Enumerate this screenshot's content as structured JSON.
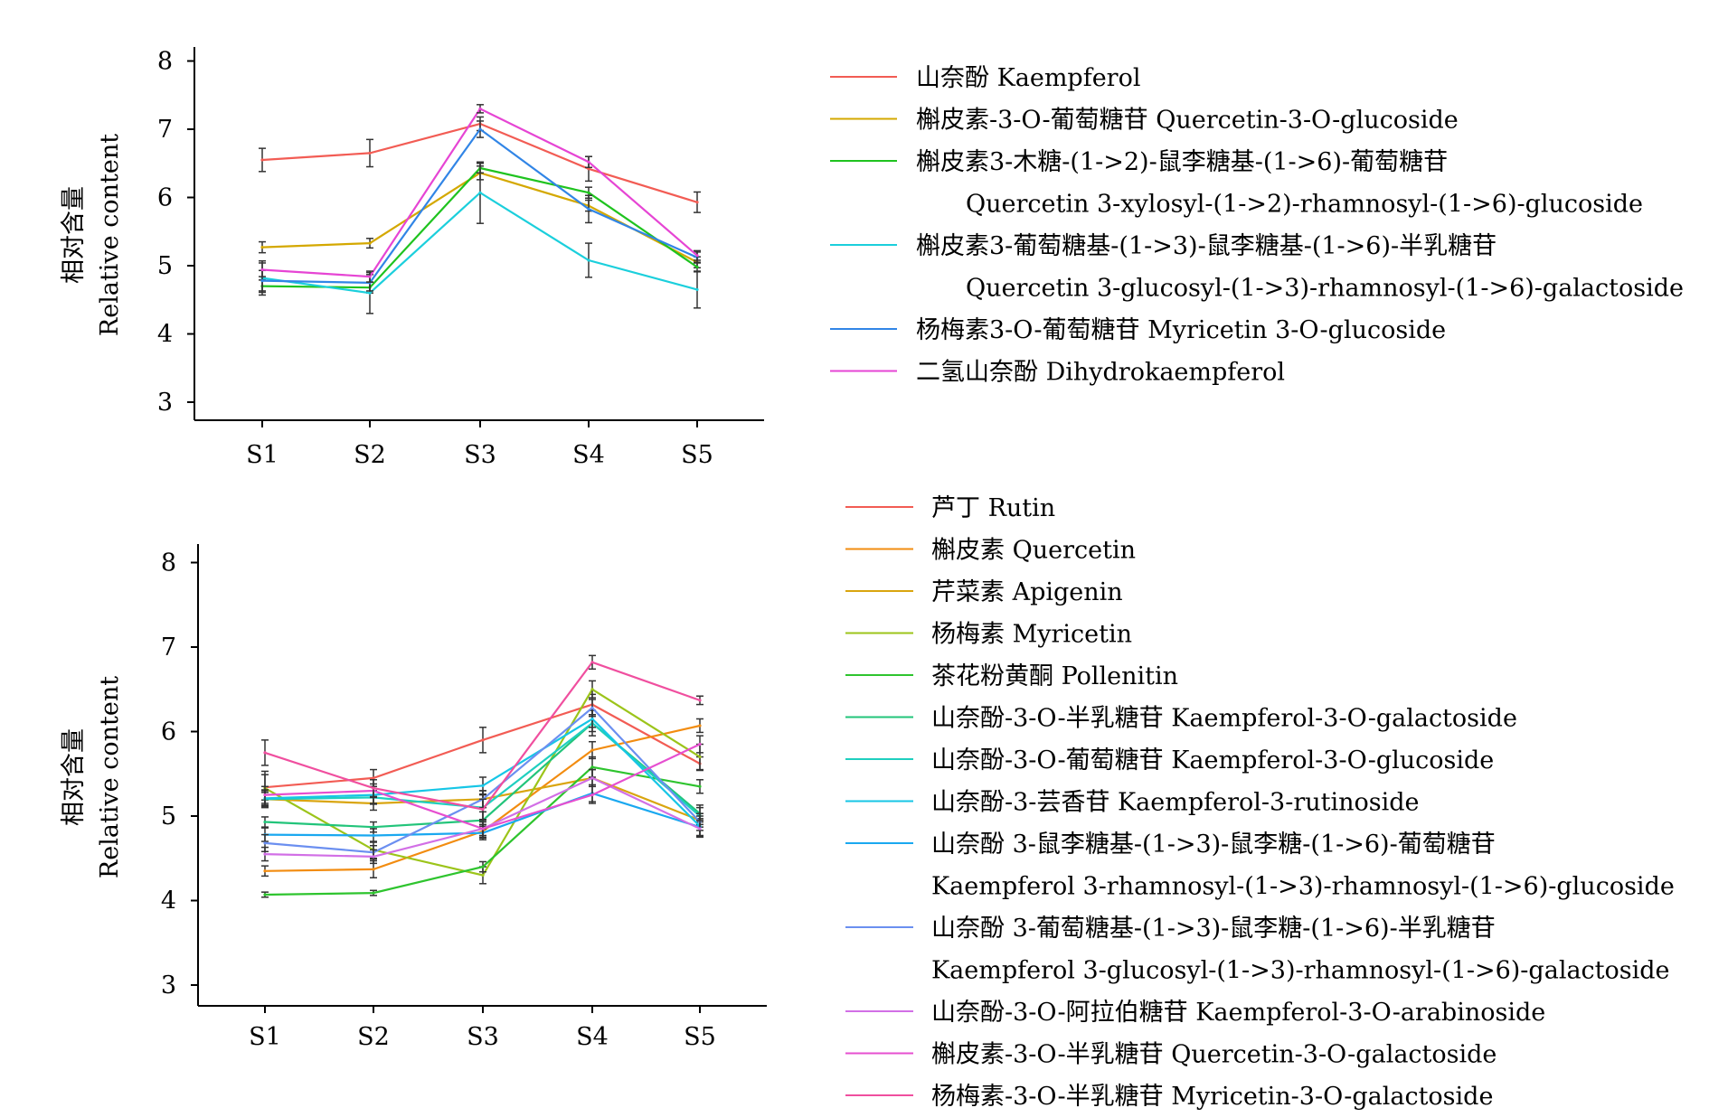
{
  "chart_data": [
    {
      "type": "line",
      "categories": [
        "S1",
        "S2",
        "S3",
        "S4",
        "S5"
      ],
      "ylim": [
        3,
        8
      ],
      "yticks": [
        3,
        4,
        5,
        6,
        7,
        8
      ],
      "ylabel_cn": "相对含量",
      "ylabel_en": "Relative content",
      "grid": false,
      "legend_position": "right",
      "series": [
        {
          "name_lines": [
            "山奈酚 Kaempferol"
          ],
          "color": "#f25c54",
          "values": [
            6.55,
            6.65,
            7.08,
            6.42,
            5.93
          ],
          "errors": [
            0.17,
            0.2,
            0.1,
            0.18,
            0.15
          ]
        },
        {
          "name_lines": [
            "槲皮素-3-O-葡萄糖苷 Quercetin-3-O-glucoside"
          ],
          "color": "#d4a800",
          "values": [
            5.27,
            5.33,
            6.36,
            5.88,
            5.05
          ],
          "errors": [
            0.08,
            0.07,
            0.1,
            0.08,
            0.08
          ]
        },
        {
          "name_lines": [
            "槲皮素3-木糖-(1->2)-鼠李糖基-(1->6)-葡萄糖苷",
            "Quercetin 3-xylosyl-(1->2)-rhamnosyl-(1->6)-glucoside"
          ],
          "color": "#1fc31f",
          "values": [
            4.7,
            4.68,
            6.43,
            6.07,
            4.98
          ],
          "errors": [
            0.09,
            0.08,
            0.07,
            0.08,
            0.07
          ]
        },
        {
          "name_lines": [
            "槲皮素3-葡萄糖基-(1->3)-鼠李糖基-(1->6)-半乳糖苷",
            "Quercetin 3-glucosyl-(1->3)-rhamnosyl-(1->6)-galactoside"
          ],
          "color": "#1bcfdc",
          "values": [
            4.82,
            4.6,
            6.07,
            5.08,
            4.65
          ],
          "errors": [
            0.25,
            0.3,
            0.45,
            0.25,
            0.27
          ]
        },
        {
          "name_lines": [
            "杨梅素3-O-葡萄糖苷 Myricetin 3-O-glucoside"
          ],
          "color": "#3185e6",
          "values": [
            4.78,
            4.75,
            7.0,
            5.83,
            5.12
          ],
          "errors": [
            0.15,
            0.12,
            0.12,
            0.2,
            0.08
          ]
        },
        {
          "name_lines": [
            "二氢山奈酚  Dihydrokaempferol"
          ],
          "color": "#e645d4",
          "values": [
            4.94,
            4.84,
            7.3,
            6.52,
            5.15
          ],
          "errors": [
            0.1,
            0.08,
            0.06,
            0.08,
            0.07
          ]
        }
      ]
    },
    {
      "type": "line",
      "categories": [
        "S1",
        "S2",
        "S3",
        "S4",
        "S5"
      ],
      "ylim": [
        3,
        8
      ],
      "yticks": [
        3,
        4,
        5,
        6,
        7,
        8
      ],
      "ylabel_cn": "相对含量",
      "ylabel_en": "Relative content",
      "grid": false,
      "legend_position": "right",
      "series": [
        {
          "name_lines": [
            "芦丁 Rutin"
          ],
          "color": "#f25c54",
          "values": [
            5.34,
            5.45,
            5.9,
            6.32,
            5.62
          ],
          "errors": [
            0.15,
            0.1,
            0.15,
            0.12,
            0.08
          ]
        },
        {
          "name_lines": [
            "槲皮素 Quercetin"
          ],
          "color": "#f28c10",
          "values": [
            4.35,
            4.37,
            4.82,
            5.78,
            6.07
          ],
          "errors": [
            0.06,
            0.1,
            0.08,
            0.1,
            0.08
          ]
        },
        {
          "name_lines": [
            "芹菜素 Apigenin"
          ],
          "color": "#d9a50f",
          "values": [
            5.2,
            5.15,
            5.2,
            5.45,
            4.95
          ],
          "errors": [
            0.1,
            0.08,
            0.1,
            0.1,
            0.08
          ]
        },
        {
          "name_lines": [
            "杨梅素 Myricetin"
          ],
          "color": "#9cc41a",
          "values": [
            5.33,
            4.6,
            4.3,
            6.5,
            5.7
          ],
          "errors": [
            0.2,
            0.1,
            0.1,
            0.1,
            0.15
          ]
        },
        {
          "name_lines": [
            "茶花粉黄酮 Pollenitin"
          ],
          "color": "#2ec42e",
          "values": [
            4.07,
            4.09,
            4.4,
            5.58,
            5.35
          ],
          "errors": [
            0.03,
            0.03,
            0.06,
            0.12,
            0.08
          ]
        },
        {
          "name_lines": [
            "山奈酚-3-O-半乳糖苷 Kaempferol-3-O-galactoside"
          ],
          "color": "#22c47a",
          "values": [
            4.93,
            4.87,
            4.95,
            6.1,
            5.03
          ],
          "errors": [
            0.06,
            0.06,
            0.1,
            0.1,
            0.1
          ]
        },
        {
          "name_lines": [
            "山奈酚-3-O-葡萄糖苷 Kaempferol-3-O-glucoside"
          ],
          "color": "#1fcfbf",
          "values": [
            5.2,
            5.22,
            5.1,
            6.1,
            5.0
          ],
          "errors": [
            0.08,
            0.08,
            0.15,
            0.15,
            0.1
          ]
        },
        {
          "name_lines": [
            "山奈酚-3-芸香苷 Kaempferol-3-rutinoside"
          ],
          "color": "#16c6e6",
          "values": [
            5.21,
            5.25,
            5.36,
            6.15,
            4.88
          ],
          "errors": [
            0.1,
            0.1,
            0.1,
            0.1,
            0.12
          ]
        },
        {
          "name_lines": [
            "山奈酚 3-鼠李糖基-(1->3)-鼠李糖-(1->6)-葡萄糖苷",
            "Kaempferol 3-rhamnosyl-(1->3)-rhamnosyl-(1->6)-glucoside"
          ],
          "color": "#1aa8f0",
          "values": [
            4.78,
            4.77,
            4.8,
            5.27,
            4.87
          ],
          "errors": [
            0.08,
            0.08,
            0.08,
            0.1,
            0.1
          ]
        },
        {
          "name_lines": [
            "山奈酚 3-葡萄糖基-(1->3)-鼠李糖-(1->6)-半乳糖苷",
            "Kaempferol 3-glucosyl-(1->3)-rhamnosyl-(1->6)-galactoside"
          ],
          "color": "#6b8ff0",
          "values": [
            4.68,
            4.57,
            5.2,
            6.28,
            4.93
          ],
          "errors": [
            0.1,
            0.08,
            0.1,
            0.1,
            0.1
          ]
        },
        {
          "name_lines": [
            "山奈酚-3-O-阿拉伯糖苷 Kaempferol-3-O-arabinoside"
          ],
          "color": "#d26fe6",
          "values": [
            4.55,
            4.52,
            4.85,
            5.45,
            4.85
          ],
          "errors": [
            0.08,
            0.08,
            0.08,
            0.1,
            0.1
          ]
        },
        {
          "name_lines": [
            "槲皮素-3-O-半乳糖苷 Quercetin-3-O-galactoside"
          ],
          "color": "#e64fd0",
          "values": [
            5.25,
            5.3,
            4.85,
            5.25,
            5.85
          ],
          "errors": [
            0.1,
            0.08,
            0.1,
            0.1,
            0.1
          ]
        },
        {
          "name_lines": [
            "杨梅素-3-O-半乳糖苷 Myricetin-3-O-galactoside"
          ],
          "color": "#f04f9f",
          "values": [
            5.75,
            5.33,
            5.08,
            6.82,
            6.37
          ],
          "errors": [
            0.15,
            0.1,
            0.12,
            0.08,
            0.05
          ]
        }
      ]
    }
  ]
}
